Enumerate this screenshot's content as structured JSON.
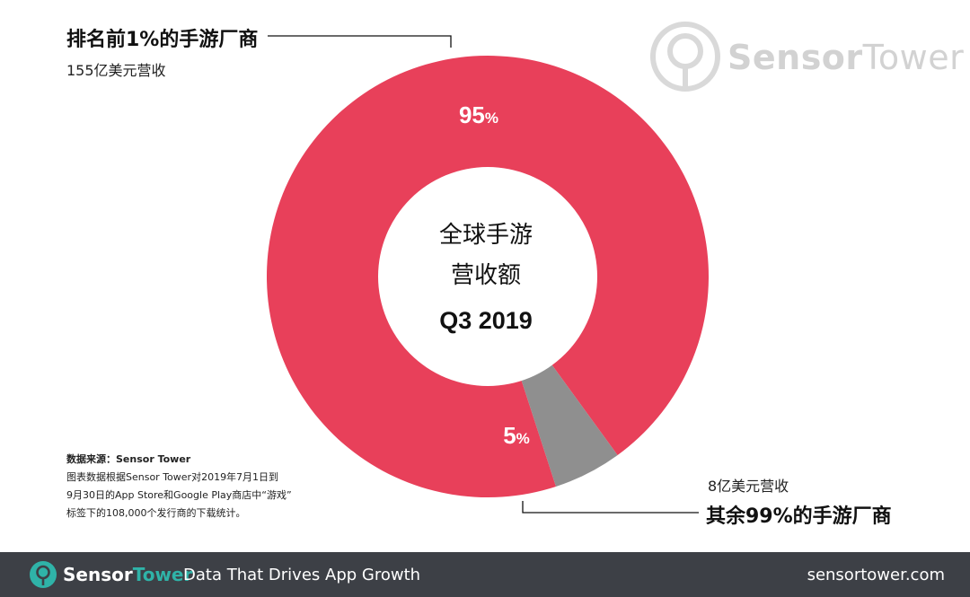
{
  "chart_data": {
    "type": "pie",
    "categories": [
      "排名前1%的手游厂商",
      "其余99%的手游厂商"
    ],
    "values": [
      95,
      5
    ],
    "value_labels": [
      "95",
      "5"
    ],
    "unit": "%",
    "revenue_labels": [
      "155亿美元营收",
      "8亿美元营收"
    ],
    "center_text": [
      "全球手游",
      "营收额",
      "Q3 2019"
    ],
    "colors": [
      "#e8405a",
      "#8f8f8f"
    ]
  },
  "watermark": {
    "brand_bold": "Sensor",
    "brand_thin": "Tower"
  },
  "footnote": {
    "title": "数据来源：Sensor Tower",
    "lines": [
      "图表数据根据Sensor Tower对2019年7月1日到",
      "9月30日的App Store和Google Play商店中“游戏”",
      "标签下的108,000个发行商的下载统计。"
    ]
  },
  "footer": {
    "brand_main": "Sensor",
    "brand_accent": "Tower",
    "tagline": "Data That Drives App Growth",
    "site": "sensortower.com",
    "colors": {
      "background": "#3d4046",
      "accent": "#2fb3a8"
    }
  }
}
